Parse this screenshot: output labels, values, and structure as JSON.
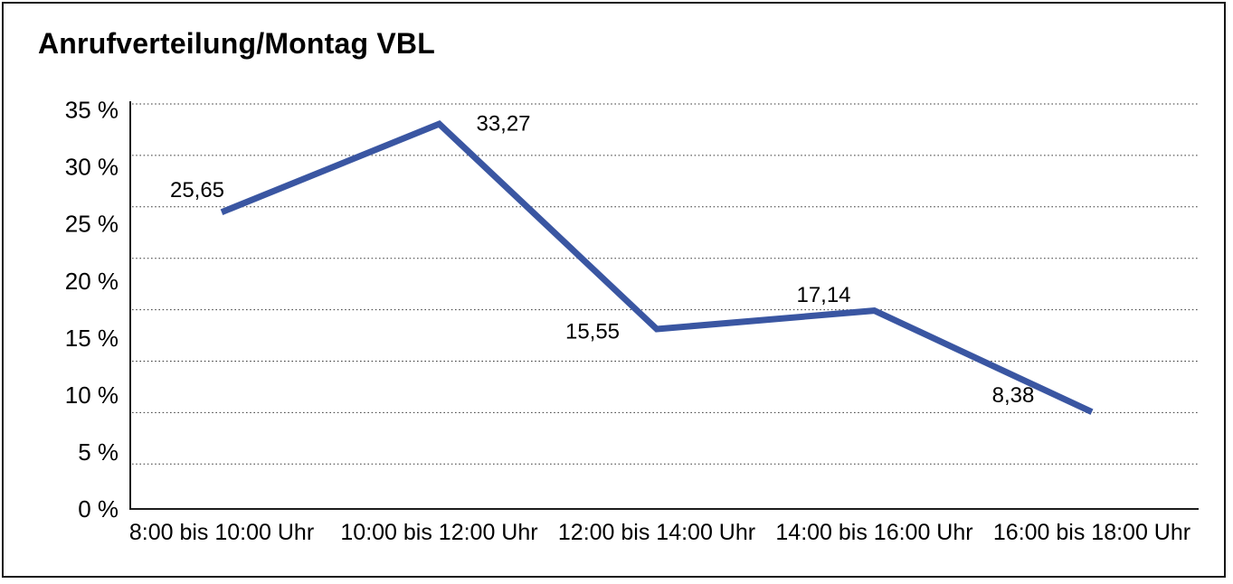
{
  "window": {
    "background": "#ffffff",
    "frame_border_color": "#161616"
  },
  "chart_data": {
    "type": "line",
    "title": "Anrufverteilung/Montag VBL",
    "categories": [
      "8:00 bis 10:00 Uhr",
      "10:00 bis 12:00 Uhr",
      "12:00 bis 14:00 Uhr",
      "14:00 bis 16:00 Uhr",
      "16:00 bis 18:00 Uhr"
    ],
    "values": [
      25.65,
      33.27,
      15.55,
      17.14,
      8.38
    ],
    "value_labels": [
      "25,65",
      "33,27",
      "15,55",
      "17,14",
      "8,38"
    ],
    "y_ticks": [
      {
        "value": 0,
        "label": "0 %"
      },
      {
        "value": 5,
        "label": "5 %"
      },
      {
        "value": 10,
        "label": "10 %"
      },
      {
        "value": 15,
        "label": "15 %"
      },
      {
        "value": 20,
        "label": "20 %"
      },
      {
        "value": 25,
        "label": "25 %"
      },
      {
        "value": 30,
        "label": "30 %"
      },
      {
        "value": 35,
        "label": "35 %"
      }
    ],
    "ylim": [
      0,
      35
    ],
    "xlabel": "",
    "ylabel": "",
    "grid": "horizontal dotted",
    "legend": "none",
    "line_color": "#3A56A2",
    "grid_color": "#3a3a3a",
    "axis_color": "#1c1c1c",
    "text_color": "#000000"
  }
}
